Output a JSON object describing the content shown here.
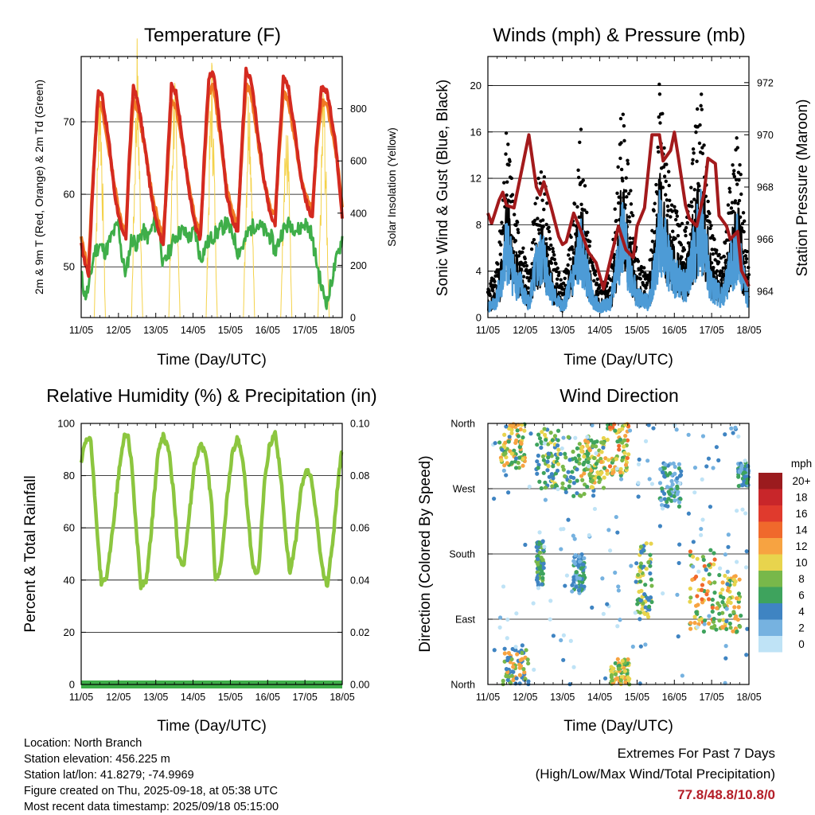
{
  "x_ticks": [
    "11/05",
    "12/05",
    "13/05",
    "14/05",
    "15/05",
    "16/05",
    "17/05",
    "18/05"
  ],
  "x_label": "Time (Day/UTC)",
  "colors": {
    "temp_2m": "#d42a20",
    "temp_9m": "#f07a23",
    "dewpoint": "#3fae49",
    "insolation": "#f4d24a",
    "wind": "#4d9bd6",
    "gust": "#000000",
    "pressure": "#a31a1c",
    "rh": "#8cc63f",
    "precip": "#3fae49",
    "extremes": "#b41e28"
  },
  "chart_data": [
    {
      "type": "line",
      "title": "Temperature (F)",
      "xlabel": "Time (Day/UTC)",
      "ylabel": "2m & 9m T (Red, Orange) & 2m Td (Green)",
      "y2label": "Solar Insolation (Yellow)",
      "ylim": [
        43,
        79
      ],
      "yticks": [
        50,
        60,
        70
      ],
      "y2lim": [
        0,
        1000
      ],
      "y2ticks": [
        0,
        200,
        400,
        600,
        800
      ],
      "x_days": [
        0,
        7
      ],
      "series": [
        {
          "axis": "left",
          "color": "temp_2m",
          "x": [
            0,
            0.08,
            0.2,
            0.3,
            0.45,
            0.55,
            0.75,
            0.9,
            1.08,
            1.2,
            1.28,
            1.4,
            1.55,
            1.75,
            1.9,
            2.08,
            2.2,
            2.3,
            2.42,
            2.55,
            2.75,
            2.9,
            3.08,
            3.2,
            3.3,
            3.42,
            3.55,
            3.75,
            3.9,
            4.08,
            4.2,
            4.3,
            4.42,
            4.55,
            4.75,
            4.9,
            5.08,
            5.2,
            5.3,
            5.42,
            5.55,
            5.75,
            5.9,
            6.08,
            6.2,
            6.3,
            6.45,
            6.6,
            6.8,
            6.95,
            7.0
          ],
          "y": [
            53,
            51,
            49,
            60,
            74,
            74,
            67,
            60,
            55,
            54,
            64,
            75,
            72,
            65,
            59,
            55,
            53,
            63,
            75,
            74,
            66,
            60,
            55,
            54,
            65,
            76,
            77,
            68,
            60,
            56,
            55,
            66,
            77,
            76,
            68,
            62,
            57,
            56,
            66,
            76,
            75,
            68,
            62,
            58,
            57,
            66,
            75,
            74,
            68,
            60,
            57
          ]
        },
        {
          "axis": "left",
          "color": "temp_9m",
          "x": [
            0,
            0.08,
            0.2,
            0.3,
            0.45,
            0.55,
            0.75,
            0.9,
            1.08,
            1.2,
            1.28,
            1.4,
            1.55,
            1.75,
            1.9,
            2.08,
            2.2,
            2.3,
            2.42,
            2.55,
            2.75,
            2.9,
            3.08,
            3.2,
            3.3,
            3.42,
            3.55,
            3.75,
            3.9,
            4.08,
            4.2,
            4.3,
            4.42,
            4.55,
            4.75,
            4.9,
            5.08,
            5.2,
            5.3,
            5.42,
            5.55,
            5.75,
            5.9,
            6.08,
            6.2,
            6.3,
            6.45,
            6.6,
            6.8,
            6.95,
            7.0
          ],
          "y": [
            54,
            52,
            50,
            61,
            73,
            72,
            66,
            61,
            56,
            55,
            63,
            73,
            71,
            65,
            60,
            56,
            54,
            62,
            73,
            72,
            66,
            61,
            56,
            55,
            64,
            74,
            75,
            67,
            61,
            57,
            56,
            65,
            75,
            74,
            67,
            62,
            58,
            57,
            65,
            74,
            73,
            67,
            62,
            59,
            58,
            65,
            73,
            72,
            67,
            61,
            58
          ]
        },
        {
          "axis": "left",
          "color": "dewpoint",
          "x": [
            0,
            0.1,
            0.2,
            0.35,
            0.5,
            0.65,
            0.8,
            1.0,
            1.1,
            1.2,
            1.35,
            1.5,
            1.65,
            1.8,
            1.95,
            2.1,
            2.2,
            2.35,
            2.5,
            2.7,
            2.9,
            3.05,
            3.2,
            3.35,
            3.5,
            3.7,
            3.9,
            4.1,
            4.2,
            4.35,
            4.5,
            4.7,
            4.9,
            5.1,
            5.2,
            5.4,
            5.6,
            5.8,
            6.0,
            6.15,
            6.3,
            6.45,
            6.6,
            6.75,
            6.9,
            7.0
          ],
          "y": [
            49,
            46,
            47,
            52,
            53,
            52,
            54,
            56,
            51,
            49,
            54,
            53,
            55,
            54,
            56,
            55,
            50,
            52,
            54,
            55,
            54,
            55,
            51,
            53,
            54,
            55,
            56,
            54,
            52,
            53,
            55,
            56,
            55,
            54,
            52,
            55,
            56,
            55,
            56,
            55,
            51,
            47,
            45,
            49,
            52,
            54
          ]
        },
        {
          "axis": "right",
          "color": "insolation",
          "x": [
            0,
            0.35,
            0.45,
            0.5,
            0.55,
            0.65,
            1.0,
            1.35,
            1.45,
            1.5,
            1.55,
            1.65,
            2.0,
            2.35,
            2.45,
            2.5,
            2.55,
            2.65,
            3.0,
            3.35,
            3.45,
            3.5,
            3.55,
            3.65,
            4.0,
            4.35,
            4.45,
            4.5,
            4.55,
            4.65,
            5.0,
            5.35,
            5.45,
            5.55,
            5.65,
            6.0,
            6.35,
            6.45,
            6.5,
            6.55,
            6.65,
            7.0
          ],
          "y": [
            0,
            0,
            600,
            860,
            600,
            0,
            0,
            0,
            620,
            880,
            620,
            0,
            0,
            0,
            600,
            840,
            600,
            0,
            0,
            0,
            620,
            850,
            620,
            0,
            0,
            0,
            600,
            830,
            600,
            0,
            0,
            0,
            580,
            580,
            0,
            0,
            0,
            560,
            800,
            560,
            0,
            0
          ]
        }
      ]
    },
    {
      "type": "scatter",
      "title": "Winds (mph) & Pressure (mb)",
      "xlabel": "Time (Day/UTC)",
      "ylabel": "Sonic Wind & Gust (Blue, Black)",
      "y2label": "Station Pressure (Maroon)",
      "ylim": [
        0,
        22.5
      ],
      "yticks": [
        0,
        4,
        8,
        12,
        16,
        20
      ],
      "y2lim": [
        963.0,
        973.0
      ],
      "y2ticks": [
        964,
        966,
        968,
        970,
        972
      ],
      "x_days": [
        0,
        7
      ],
      "wind_base_x": [
        0,
        0.2,
        0.4,
        0.5,
        0.6,
        0.7,
        0.9,
        1.0,
        1.1,
        1.3,
        1.5,
        1.6,
        1.8,
        2.0,
        2.3,
        2.5,
        2.6,
        2.8,
        3.0,
        3.3,
        3.5,
        3.6,
        3.8,
        4.0,
        4.3,
        4.5,
        4.6,
        4.8,
        5.0,
        5.3,
        5.5,
        5.7,
        5.9,
        6.0,
        6.3,
        6.5,
        6.7,
        6.9,
        7.0
      ],
      "wind_base_y": [
        1,
        1.5,
        4,
        7,
        6,
        4,
        3,
        2,
        1.5,
        5,
        6,
        4,
        2,
        1,
        4,
        7,
        5,
        2,
        1,
        1.5,
        6,
        8,
        5,
        2,
        1.5,
        5,
        9,
        6,
        4,
        3,
        6,
        9,
        5,
        3,
        2,
        5,
        7,
        3,
        1.5
      ],
      "pressure": {
        "x": [
          0,
          0.1,
          0.3,
          0.4,
          0.5,
          0.7,
          0.9,
          1.1,
          1.3,
          1.4,
          1.5,
          1.7,
          1.9,
          2.0,
          2.1,
          2.3,
          2.5,
          2.7,
          2.9,
          3.1,
          3.3,
          3.5,
          3.7,
          3.9,
          4.0,
          4.2,
          4.4,
          4.6,
          4.7,
          4.9,
          5.0,
          5.1,
          5.3,
          5.4,
          5.6,
          5.8,
          5.9,
          6.1,
          6.2,
          6.4,
          6.5,
          6.7,
          6.8,
          6.9,
          7.0
        ],
        "y": [
          967,
          966.6,
          967.5,
          967.8,
          967.3,
          967.2,
          968.6,
          970.0,
          968.0,
          967.7,
          968.2,
          967.2,
          966.1,
          965.8,
          965.9,
          967.0,
          966.3,
          965.5,
          965.1,
          964.1,
          965.3,
          966.5,
          965.6,
          965.3,
          966.5,
          967.2,
          970.0,
          970.0,
          969.0,
          969.4,
          970.1,
          969.2,
          967.3,
          966.8,
          966.5,
          967.8,
          969.1,
          968.9,
          966.9,
          966.5,
          966.0,
          966.3,
          964.8,
          964.5,
          964.2
        ]
      }
    },
    {
      "type": "line",
      "title": "Relative Humidity (%) & Precipitation (in)",
      "xlabel": "Time (Day/UTC)",
      "ylabel": "Percent & Total Rainfall",
      "ylim": [
        0,
        100
      ],
      "yticks": [
        0,
        20,
        40,
        60,
        80,
        100
      ],
      "y2lim": [
        0,
        0.1
      ],
      "y2ticks": [
        "0.00",
        "0.02",
        "0.04",
        "0.06",
        "0.08",
        "0.10"
      ],
      "x_days": [
        0,
        7
      ],
      "series": [
        {
          "name": "rh",
          "axis": "left",
          "color": "rh",
          "x": [
            0,
            0.1,
            0.25,
            0.4,
            0.5,
            0.55,
            0.7,
            0.85,
            1.0,
            1.15,
            1.25,
            1.35,
            1.5,
            1.6,
            1.75,
            1.9,
            2.05,
            2.2,
            2.35,
            2.5,
            2.6,
            2.75,
            2.9,
            3.05,
            3.2,
            3.35,
            3.5,
            3.6,
            3.75,
            3.9,
            4.05,
            4.2,
            4.35,
            4.5,
            4.6,
            4.75,
            4.9,
            5.05,
            5.2,
            5.35,
            5.5,
            5.6,
            5.75,
            5.9,
            6.05,
            6.15,
            6.3,
            6.45,
            6.6,
            6.75,
            6.9,
            7.0
          ],
          "y": [
            85,
            92,
            95,
            65,
            45,
            38,
            42,
            60,
            80,
            95,
            96,
            85,
            55,
            38,
            40,
            62,
            88,
            95,
            90,
            70,
            50,
            45,
            65,
            85,
            92,
            88,
            68,
            40,
            45,
            70,
            88,
            95,
            85,
            60,
            45,
            42,
            75,
            92,
            96,
            80,
            55,
            42,
            55,
            75,
            82,
            80,
            65,
            45,
            38,
            55,
            80,
            90
          ]
        },
        {
          "name": "precip",
          "axis": "right",
          "color": "precip",
          "x": [
            0,
            7
          ],
          "y": [
            0,
            0
          ]
        }
      ]
    },
    {
      "type": "scatter",
      "title": "Wind Direction",
      "xlabel": "Time (Day/UTC)",
      "ylabel": "Direction (Colored By Speed)",
      "yticks": [
        "North",
        "East",
        "South",
        "West",
        "North"
      ],
      "x_days": [
        0,
        7
      ],
      "legend": {
        "title": "mph",
        "labels": [
          "20+",
          "18",
          "16",
          "14",
          "12",
          "10",
          "8",
          "6",
          "4",
          "2",
          "0"
        ],
        "colors": [
          "#9b1b1e",
          "#c8262a",
          "#e03a2d",
          "#f0692c",
          "#f7a341",
          "#e8d44d",
          "#78b84a",
          "#3ea35d",
          "#3f84c2",
          "#76b2e0",
          "#bfe3f6"
        ]
      },
      "clusters": [
        {
          "x0": 0.4,
          "x1": 1.1,
          "y0": 0.0,
          "y1": 0.15,
          "lvl": [
            2,
            4,
            6
          ]
        },
        {
          "x0": 0.3,
          "x1": 1.0,
          "y0": 0.82,
          "y1": 1.0,
          "lvl": [
            3,
            4,
            5,
            6
          ]
        },
        {
          "x0": 1.3,
          "x1": 1.9,
          "y0": 0.75,
          "y1": 0.98,
          "lvl": [
            2,
            3,
            4,
            5
          ]
        },
        {
          "x0": 1.3,
          "x1": 1.5,
          "y0": 0.38,
          "y1": 0.55,
          "lvl": [
            2,
            3,
            4
          ]
        },
        {
          "x0": 2.0,
          "x1": 2.9,
          "y0": 0.72,
          "y1": 0.95,
          "lvl": [
            2,
            3,
            4
          ]
        },
        {
          "x0": 2.3,
          "x1": 2.6,
          "y0": 0.35,
          "y1": 0.5,
          "lvl": [
            1,
            2,
            3
          ]
        },
        {
          "x0": 2.5,
          "x1": 3.2,
          "y0": 0.75,
          "y1": 0.95,
          "lvl": [
            3,
            4,
            5,
            6
          ]
        },
        {
          "x0": 3.2,
          "x1": 3.8,
          "y0": 0.8,
          "y1": 1.0,
          "lvl": [
            3,
            4,
            5,
            6,
            7
          ]
        },
        {
          "x0": 3.3,
          "x1": 3.8,
          "y0": 0.0,
          "y1": 0.1,
          "lvl": [
            3,
            4,
            5,
            6
          ]
        },
        {
          "x0": 4.0,
          "x1": 4.4,
          "y0": 0.25,
          "y1": 0.55,
          "lvl": [
            2,
            3,
            4,
            5
          ]
        },
        {
          "x0": 4.6,
          "x1": 5.2,
          "y0": 0.68,
          "y1": 0.85,
          "lvl": [
            1,
            2,
            3
          ]
        },
        {
          "x0": 5.4,
          "x1": 6.1,
          "y0": 0.2,
          "y1": 0.52,
          "lvl": [
            3,
            4,
            5,
            6,
            7
          ]
        },
        {
          "x0": 6.1,
          "x1": 6.8,
          "y0": 0.2,
          "y1": 0.42,
          "lvl": [
            3,
            4,
            5,
            6
          ]
        },
        {
          "x0": 6.7,
          "x1": 7.0,
          "y0": 0.76,
          "y1": 0.85,
          "lvl": [
            1,
            2,
            3
          ]
        },
        {
          "x0": 0.0,
          "x1": 7.0,
          "y0": 0.0,
          "y1": 1.0,
          "lvl": [
            0,
            1,
            2
          ]
        }
      ]
    }
  ],
  "footer": {
    "location": "Location: North Branch",
    "elevation": "Station elevation: 456.225 m",
    "latlon": "Station lat/lon: 41.8279; -74.9969",
    "created": "Figure created on Thu, 2025-09-18, at 05:38 UTC",
    "recent": "Most recent data timestamp: 2025/09/18 05:15:00"
  },
  "extremes": {
    "title": "Extremes For Past 7 Days",
    "subtitle": "(High/Low/Max Wind/Total Precipitation)",
    "values": "77.8/48.8/10.8/0"
  }
}
